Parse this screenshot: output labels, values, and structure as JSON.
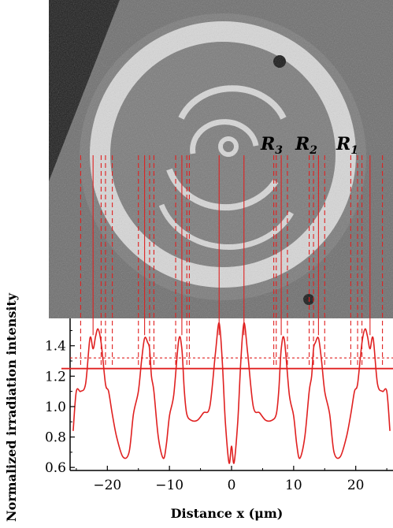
{
  "chart_data": {
    "type": "line",
    "xlabel": "Distance x (μm)",
    "ylabel": "Normalized irradiation intensity",
    "xlim": [
      -26,
      26
    ],
    "ylim": [
      0.58,
      1.58
    ],
    "x_ticks": [
      -20,
      -10,
      0,
      10,
      20
    ],
    "x_tick_labels": [
      "−20",
      "−10",
      "0",
      "10",
      "20"
    ],
    "y_ticks": [
      0.6,
      0.8,
      1.0,
      1.2,
      1.4
    ],
    "y_tick_labels": [
      "0.6",
      "0.8",
      "1.0",
      "1.2",
      "1.4"
    ],
    "series": [
      {
        "values_x": [
          -25.5,
          -25,
          -24.3,
          -23.5,
          -22.8,
          -22.3,
          -21.9,
          -21.5,
          -21,
          -20.3,
          -19.8,
          -19.2,
          -18.5,
          -17.5,
          -16.5,
          -15.8,
          -15,
          -14.5,
          -14,
          -13.5,
          -13.2,
          -12.9,
          -12.5,
          -11.8,
          -11,
          -10.5,
          -10,
          -9.3,
          -8.5,
          -8,
          -7.6,
          -7.2,
          -6.5,
          -5.5,
          -4.5,
          -3.5,
          -2.6,
          -2,
          -1.5,
          -1,
          -0.4,
          0,
          0.4,
          1,
          1.5,
          2,
          2.6,
          3.5,
          4.5,
          5.5,
          6.5,
          7.2,
          7.6,
          8,
          8.5,
          9.3,
          10,
          10.5,
          11,
          11.8,
          12.5,
          12.9,
          13.2,
          13.5,
          14,
          14.5,
          15,
          15.8,
          16.5,
          17.5,
          18.5,
          19.2,
          19.8,
          20.3,
          21,
          21.5,
          21.9,
          22.3,
          22.8,
          23.5,
          24.3,
          25,
          25.5
        ],
        "values_y": [
          0.84,
          1.1,
          1.1,
          1.15,
          1.45,
          1.38,
          1.46,
          1.51,
          1.42,
          1.15,
          1.1,
          0.95,
          0.8,
          0.67,
          0.7,
          0.95,
          1.1,
          1.3,
          1.45,
          1.42,
          1.38,
          1.2,
          1.1,
          0.8,
          0.66,
          0.75,
          0.94,
          1.08,
          1.44,
          1.38,
          1.1,
          0.95,
          0.91,
          0.91,
          0.96,
          1.0,
          1.35,
          1.55,
          1.3,
          0.9,
          0.63,
          0.74,
          0.63,
          0.9,
          1.3,
          1.55,
          1.35,
          1.0,
          0.96,
          0.91,
          0.91,
          0.95,
          1.1,
          1.38,
          1.44,
          1.08,
          0.94,
          0.75,
          0.66,
          0.8,
          1.1,
          1.2,
          1.38,
          1.42,
          1.45,
          1.3,
          1.1,
          0.95,
          0.7,
          0.67,
          0.8,
          0.95,
          1.1,
          1.15,
          1.42,
          1.51,
          1.46,
          1.38,
          1.45,
          1.15,
          1.1,
          1.1,
          0.84
        ]
      }
    ],
    "threshold_solid": 1.25,
    "threshold_dotted": 1.32,
    "ring_labels": [
      {
        "main": "R",
        "sub": "3"
      },
      {
        "main": "R",
        "sub": "2"
      },
      {
        "main": "R",
        "sub": "1"
      }
    ],
    "guide_solid_x": [
      -22.3,
      -14,
      -8,
      -2,
      2,
      8,
      14,
      22.3
    ],
    "guide_dashed_x": [
      -24.3,
      -21,
      -20.3,
      -19.2,
      -15,
      -13.2,
      -12.5,
      -9,
      -7.2,
      -6.8,
      6.8,
      7.2,
      9,
      12.5,
      13.2,
      15,
      19.2,
      20.3,
      21,
      24.3
    ]
  },
  "colors": {
    "curve": "#e02020",
    "guide": "#e02020",
    "photo_background": "#6d6d6d",
    "photo_corner": "#1a1a1a",
    "ring": "#d8d8d8"
  }
}
